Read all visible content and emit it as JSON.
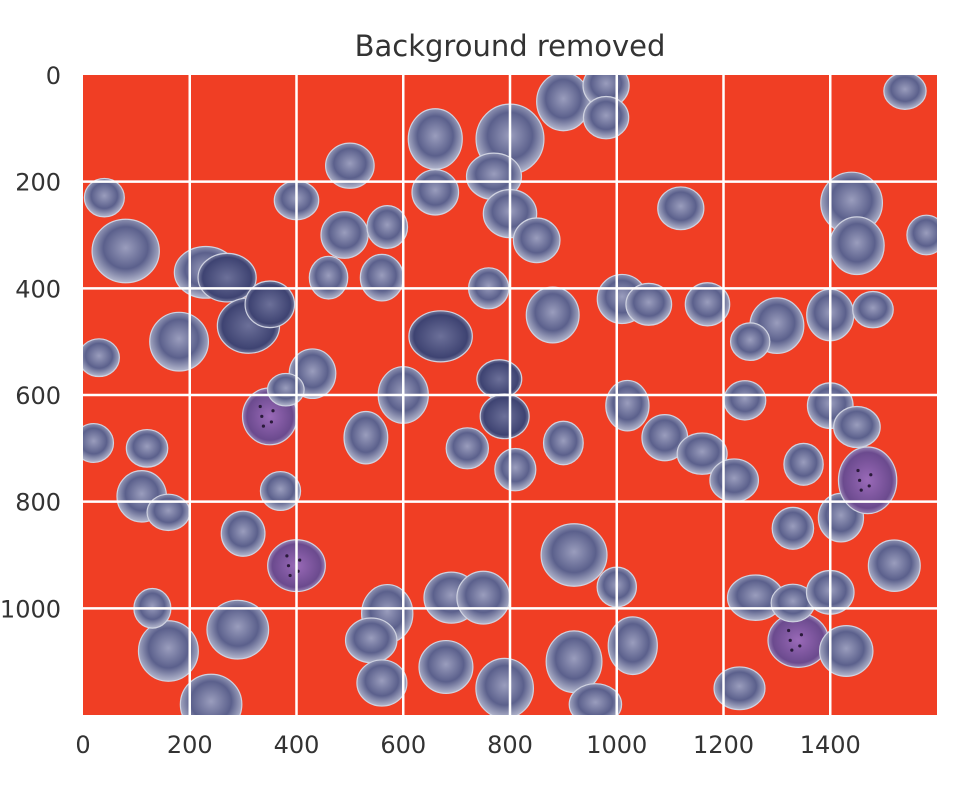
{
  "title": "Background removed",
  "image": {
    "description_tag": "microscope-blood-smear-cells",
    "background_color": "#f03e24",
    "cell_color": "#4f5482",
    "cell_light_color": "#cfd2e0",
    "parasite_color": "#7a4a9a",
    "grid_color": "#ffffff"
  },
  "axes": {
    "x_ticks": [
      "0",
      "200",
      "400",
      "600",
      "800",
      "1000",
      "1200",
      "1400"
    ],
    "y_ticks": [
      "0",
      "200",
      "400",
      "600",
      "800",
      "1000"
    ],
    "x_range": [
      0,
      1600
    ],
    "y_range": [
      0,
      1200
    ],
    "y_inverted": true,
    "grid": true
  }
}
